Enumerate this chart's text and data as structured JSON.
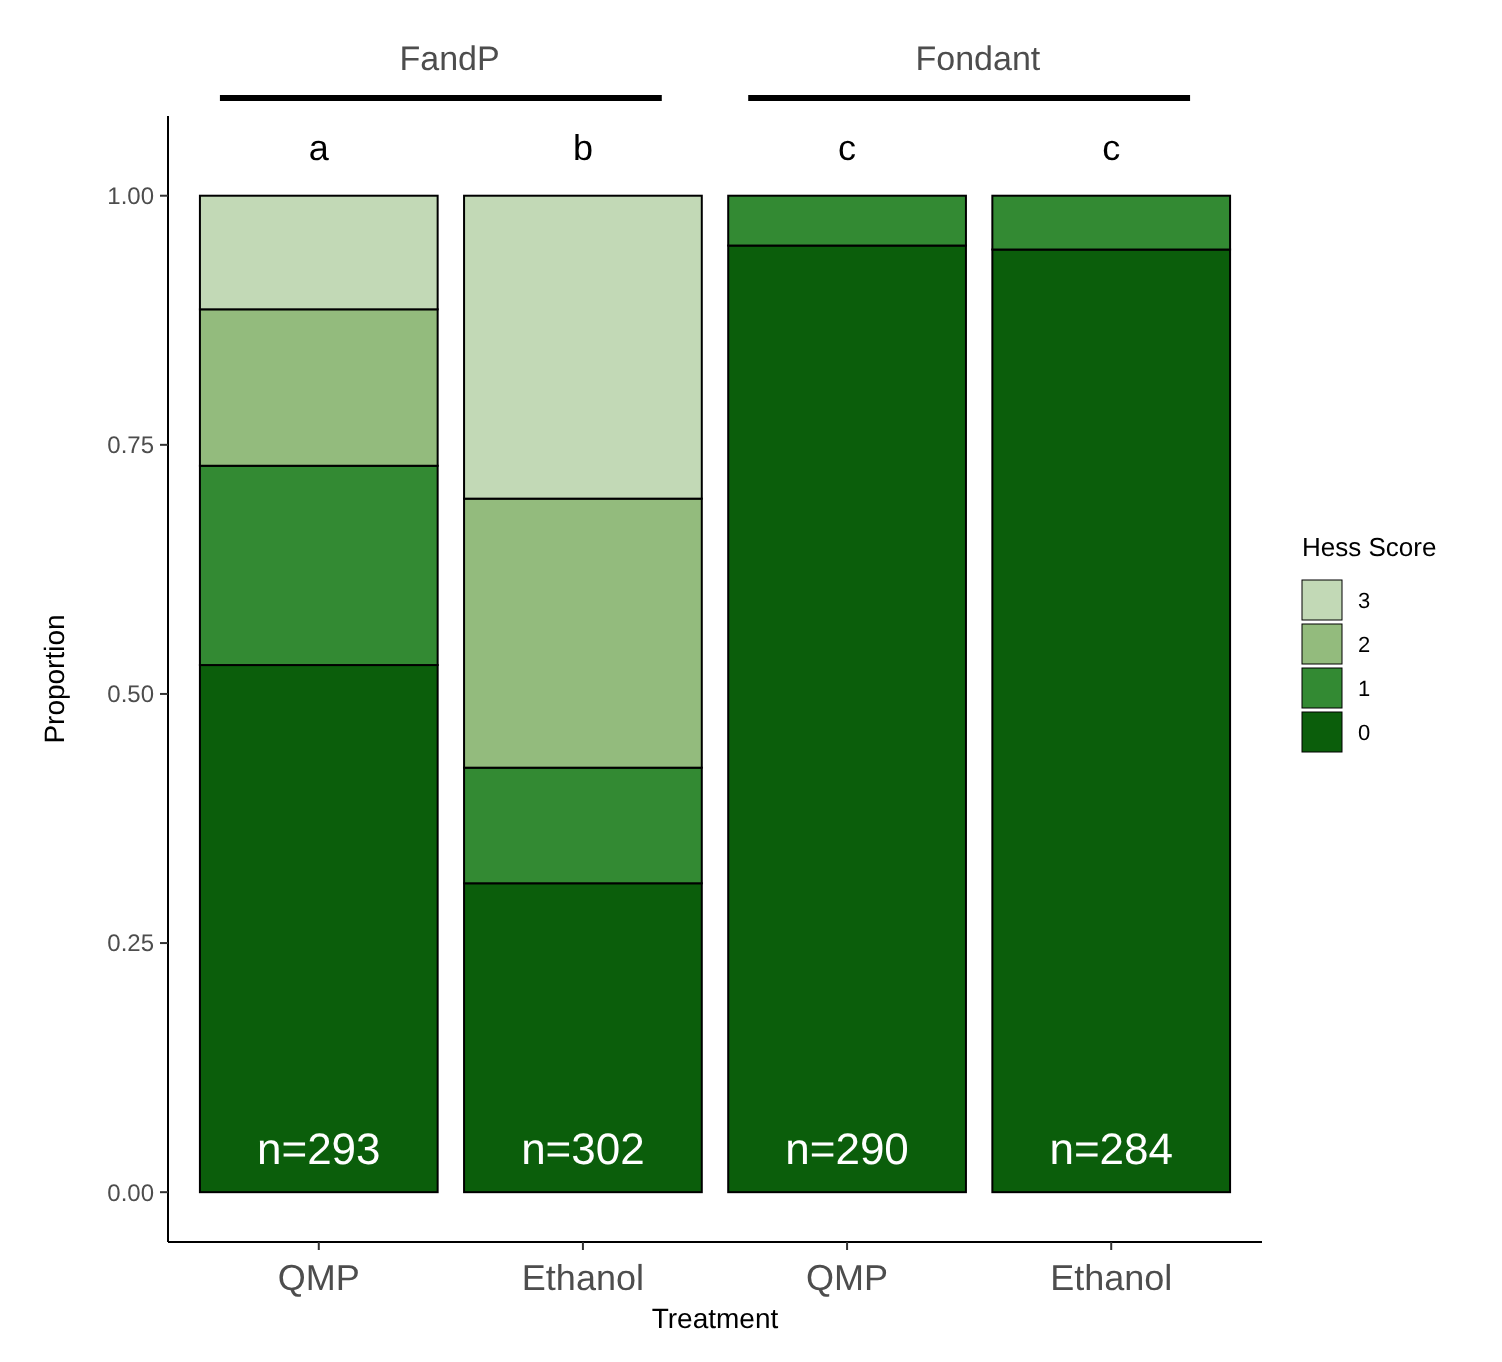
{
  "chart_data": {
    "type": "bar",
    "stacked": true,
    "categories": [
      "QMP",
      "Ethanol",
      "QMP",
      "Ethanol"
    ],
    "series": [
      {
        "name": "0",
        "color": "#0b5e0b",
        "values": [
          0.529,
          0.31,
          0.95,
          0.946
        ]
      },
      {
        "name": "1",
        "color": "#338a33",
        "values": [
          0.2,
          0.116,
          0.05,
          0.054
        ]
      },
      {
        "name": "2",
        "color": "#93bb7d",
        "values": [
          0.157,
          0.27,
          0,
          0
        ]
      },
      {
        "name": "3",
        "color": "#c2d9b6",
        "values": [
          0.114,
          0.304,
          0,
          0
        ]
      }
    ],
    "ylim": [
      -0.05,
      1.08
    ],
    "yticks": [
      {
        "value": 0,
        "label": "0.00"
      },
      {
        "value": 0.25,
        "label": "0.25"
      },
      {
        "value": 0.5,
        "label": "0.50"
      },
      {
        "value": 0.75,
        "label": "0.75"
      },
      {
        "value": 1,
        "label": "1.00"
      }
    ],
    "xlabel": "Treatment",
    "ylabel": "Proportion",
    "legend_title": "Hess Score",
    "legend": "right",
    "grid": false,
    "annotations": [
      "FandP",
      "Fondant",
      "a",
      "b",
      "c",
      "c",
      "n=293",
      "n=302",
      "n=290",
      "n=284"
    ]
  }
}
